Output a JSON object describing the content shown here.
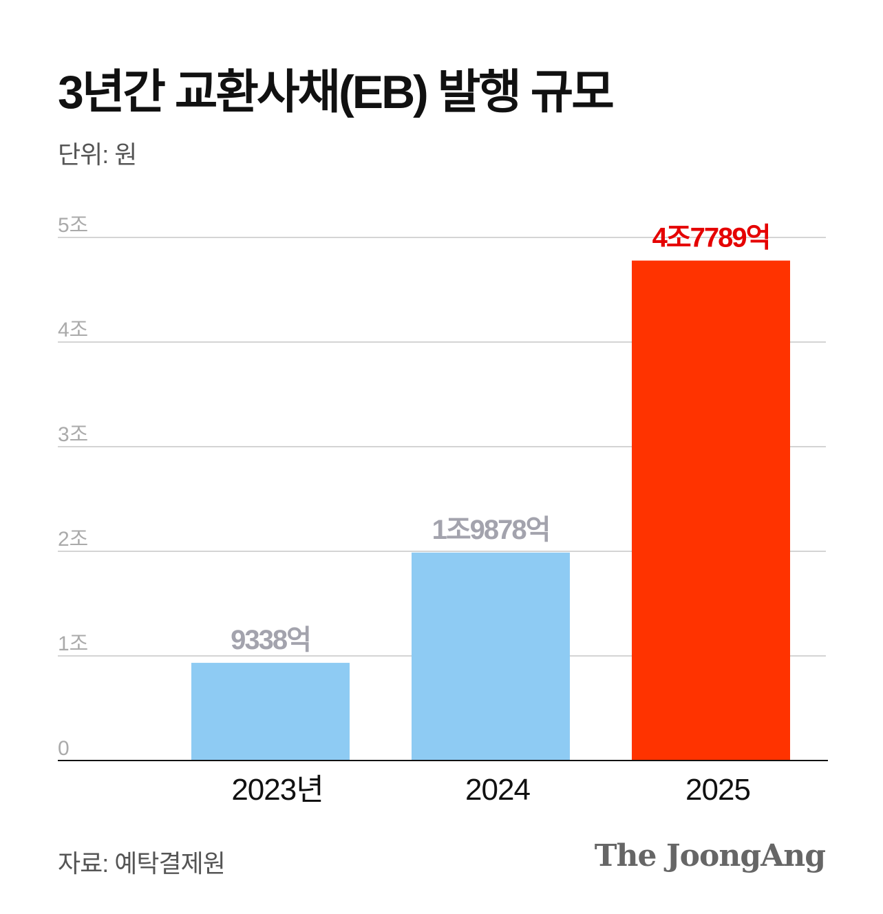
{
  "chart_data": {
    "type": "bar",
    "title": "3년간 교환사채(EB) 발행 규모",
    "unit_label": "단위: 원",
    "categories": [
      "2023년",
      "2024",
      "2025"
    ],
    "values": [
      0.9338,
      1.9878,
      4.7789
    ],
    "value_units": "조원",
    "data_labels": [
      "9338억",
      "1조9878억",
      "4조7789억"
    ],
    "yticks": [
      0,
      1,
      2,
      3,
      4,
      5
    ],
    "ytick_labels": [
      "0",
      "1조",
      "2조",
      "3조",
      "4조",
      "5조"
    ],
    "ylim": [
      0,
      5
    ],
    "grid": true,
    "bar_colors": [
      "#8ecbf3",
      "#8ecbf3",
      "#ff3300"
    ],
    "label_colors": [
      "#a3a3ad",
      "#a3a3ad",
      "#e50000"
    ]
  },
  "source": "자료: 예탁결제원",
  "brand": "The JoongAng"
}
